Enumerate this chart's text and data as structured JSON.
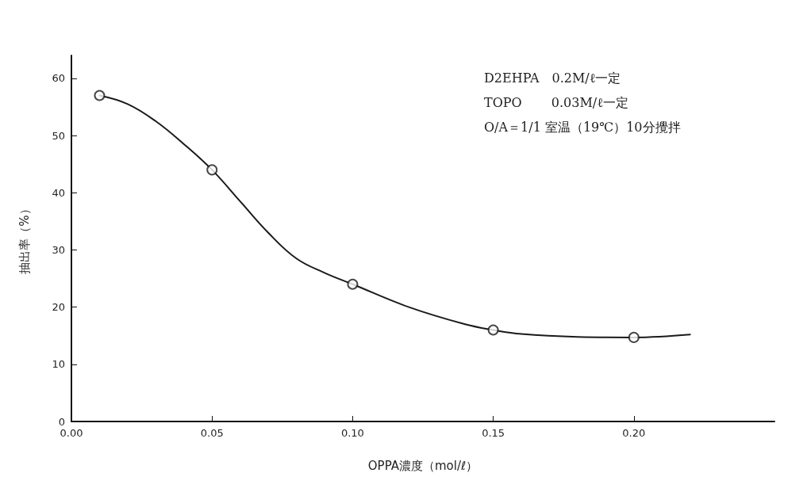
{
  "chart_data": {
    "type": "scatter",
    "xlabel": "OPPA濃度（mol/ℓ）",
    "ylabel": "抽出率（%）",
    "annotations": [
      "D2EHPA　0.2M/ℓ一定",
      "TOPO　　 0.03M/ℓ一定",
      "O/A＝1/1 室温（19℃）10分攪拌"
    ],
    "x": [
      0.01,
      0.05,
      0.1,
      0.15,
      0.2
    ],
    "series": [
      {
        "color": "#1a1a1a",
        "values": [
          57,
          44,
          24,
          16,
          14.7
        ],
        "marker": "circle"
      },
      {
        "type": "line",
        "color": "#1a1a1a",
        "marker": "none",
        "line_style": "solid",
        "x": [
          0.01,
          0.02,
          0.03,
          0.04,
          0.05,
          0.06,
          0.07,
          0.08,
          0.09,
          0.1,
          0.12,
          0.14,
          0.15,
          0.16,
          0.18,
          0.2,
          0.22
        ],
        "values": [
          57,
          55.5,
          52.5,
          48.5,
          44,
          38.5,
          33,
          28.5,
          26,
          24,
          20,
          17,
          16,
          15.3,
          14.8,
          14.7,
          15.2
        ]
      }
    ],
    "xlim": [
      0,
      0.25
    ],
    "xticks": [
      {
        "value": 0,
        "label": "0.00"
      },
      0.05,
      {
        "value": 0.1,
        "label": "0.10"
      },
      0.15,
      {
        "value": 0.2,
        "label": "0.20"
      }
    ],
    "ylim": [
      0,
      64
    ],
    "yticks": [
      0,
      10,
      20,
      30,
      40,
      50,
      60
    ],
    "grid": false
  }
}
